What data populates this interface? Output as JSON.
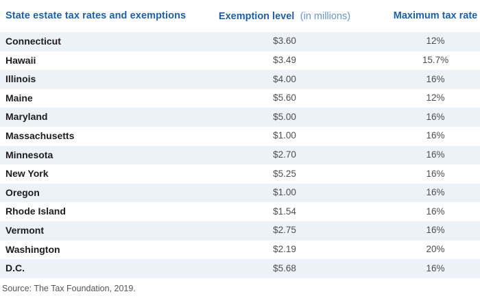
{
  "header": {
    "title": "State estate tax rates and exemptions",
    "exemption_label": "Exemption level",
    "exemption_note": "(in millions)",
    "rate_label": "Maximum tax rate"
  },
  "chart_data": {
    "type": "table",
    "title": "State estate tax rates and exemptions",
    "columns": [
      "State",
      "Exemption level (in millions)",
      "Maximum tax rate"
    ],
    "rows": [
      [
        "Connecticut",
        "$3.60",
        "12%"
      ],
      [
        "Hawaii",
        "$3.49",
        "15.7%"
      ],
      [
        "Illinois",
        "$4.00",
        "16%"
      ],
      [
        "Maine",
        "$5.60",
        "12%"
      ],
      [
        "Maryland",
        "$5.00",
        "16%"
      ],
      [
        "Massachusetts",
        "$1.00",
        "16%"
      ],
      [
        "Minnesota",
        "$2.70",
        "16%"
      ],
      [
        "New York",
        "$5.25",
        "16%"
      ],
      [
        "Oregon",
        "$1.00",
        "16%"
      ],
      [
        "Rhode Island",
        "$1.54",
        "16%"
      ],
      [
        "Vermont",
        "$2.75",
        "16%"
      ],
      [
        "Washington",
        "$2.19",
        "20%"
      ],
      [
        "D.C.",
        "$5.68",
        "16%"
      ]
    ],
    "exemption_values_millions": [
      3.6,
      3.49,
      4.0,
      5.6,
      5.0,
      1.0,
      2.7,
      5.25,
      1.0,
      1.54,
      2.75,
      2.19,
      5.68
    ],
    "max_tax_rate_percent": [
      12,
      15.7,
      16,
      12,
      16,
      16,
      16,
      16,
      16,
      16,
      16,
      20,
      16
    ],
    "source": "Source: The Tax Foundation, 2019.",
    "layout": {
      "zebra_stripes": true,
      "stripe_on_odd_rows": true,
      "grid": "off",
      "legend": "none"
    }
  },
  "footer": {
    "source": "Source: The Tax Foundation, 2019."
  },
  "colors": {
    "header_blue": "#1f5fa6",
    "header_note_blue": "#6b94c8",
    "row_stripe": "#edf2f9",
    "state_text": "#1c1c1c",
    "value_text": "#4d4d4d",
    "source_text": "#565656",
    "background": "#ffffff"
  }
}
